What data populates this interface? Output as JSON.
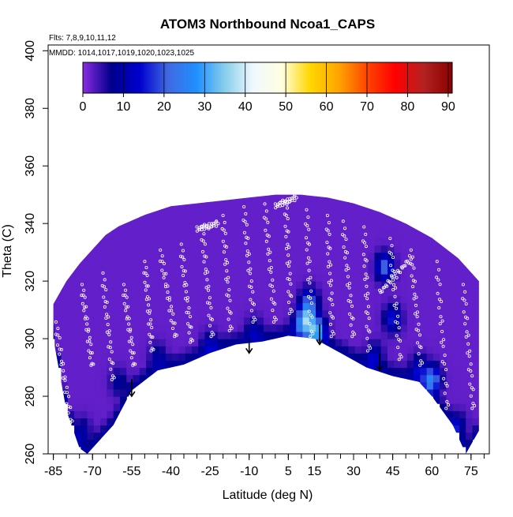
{
  "chart_data": {
    "type": "heatmap",
    "title": "ATOM3 Northbound Ncoa1_CAPS",
    "subtitle_lines": [
      "Flts: 7,8,9,10,11,12",
      "MMDD: 1014,1017,1019,1020,1023,1025"
    ],
    "xlabel": "Latitude (deg N)",
    "ylabel": "Theta (C)",
    "x_tick_labels": [
      "-85",
      "-70",
      "-55",
      "-40",
      "-25",
      "-10",
      "5",
      "15",
      "30",
      "45",
      "60",
      "75"
    ],
    "x_ticks": [
      -85,
      -70,
      -55,
      -40,
      -25,
      -10,
      5,
      15,
      30,
      45,
      60,
      75
    ],
    "xlim": [
      -87,
      82
    ],
    "y_tick_labels": [
      "260",
      "280",
      "300",
      "320",
      "340",
      "360",
      "380",
      "400"
    ],
    "y_ticks": [
      260,
      280,
      300,
      320,
      340,
      360,
      380,
      400
    ],
    "ylim": [
      260,
      402
    ],
    "colorbar": {
      "tick_labels": [
        "0",
        "10",
        "20",
        "30",
        "40",
        "50",
        "60",
        "70",
        "80",
        "90"
      ],
      "ticks": [
        0,
        10,
        20,
        30,
        40,
        50,
        60,
        70,
        80,
        90
      ],
      "range": [
        0,
        91
      ],
      "colors": [
        "#8a2be2",
        "#00008b",
        "#0000cd",
        "#4169e1",
        "#1e90ff",
        "#87ceeb",
        "#f0f8ff",
        "#ffffe0",
        "#ffd700",
        "#ffa500",
        "#ff4500",
        "#ff0000",
        "#b22222",
        "#8b0000"
      ]
    },
    "background_value": 2,
    "domain_top": [
      [
        -85,
        312
      ],
      [
        -80,
        320
      ],
      [
        -75,
        326
      ],
      [
        -70,
        331
      ],
      [
        -65,
        336
      ],
      [
        -60,
        339
      ],
      [
        -50,
        343
      ],
      [
        -40,
        346
      ],
      [
        -30,
        347
      ],
      [
        -20,
        348
      ],
      [
        -10,
        349
      ],
      [
        0,
        350
      ],
      [
        10,
        350
      ],
      [
        20,
        349
      ],
      [
        30,
        347
      ],
      [
        40,
        344
      ],
      [
        50,
        340
      ],
      [
        60,
        335
      ],
      [
        70,
        328
      ],
      [
        78,
        320
      ]
    ],
    "domain_bottom": [
      [
        -85,
        300
      ],
      [
        -80,
        275
      ],
      [
        -75,
        262
      ],
      [
        -72,
        260
      ],
      [
        -62,
        270
      ],
      [
        -55,
        282
      ],
      [
        -45,
        289
      ],
      [
        -35,
        291
      ],
      [
        -25,
        295
      ],
      [
        -15,
        298
      ],
      [
        -5,
        299
      ],
      [
        5,
        301
      ],
      [
        15,
        300
      ],
      [
        25,
        295
      ],
      [
        35,
        290
      ],
      [
        45,
        287
      ],
      [
        55,
        285
      ],
      [
        60,
        280
      ],
      [
        68,
        270
      ],
      [
        73,
        260
      ],
      [
        78,
        268
      ]
    ],
    "hotspots": [
      {
        "lat": 12,
        "theta": 307,
        "value": 22
      },
      {
        "lat": 16,
        "theta": 303,
        "value": 27
      },
      {
        "lat": 10,
        "theta": 305,
        "value": 14
      },
      {
        "lat": 13,
        "theta": 313,
        "value": 18
      },
      {
        "lat": 42,
        "theta": 325,
        "value": 20
      },
      {
        "lat": 45,
        "theta": 307,
        "value": 14
      },
      {
        "lat": 60,
        "theta": 286,
        "value": 24
      },
      {
        "lat": 55,
        "theta": 290,
        "value": 10
      },
      {
        "lat": 38,
        "theta": 294,
        "value": 11
      },
      {
        "lat": -8,
        "theta": 303,
        "value": 8
      },
      {
        "lat": -25,
        "theta": 298,
        "value": 8
      },
      {
        "lat": -45,
        "theta": 294,
        "value": 7
      },
      {
        "lat": -60,
        "theta": 285,
        "value": 7
      },
      {
        "lat": -74,
        "theta": 268,
        "value": 8
      },
      {
        "lat": 70,
        "theta": 270,
        "value": 9
      }
    ],
    "arrows": [
      {
        "lat": -55,
        "theta_top": 286,
        "theta_tip": 280
      },
      {
        "lat": -10,
        "theta_top": 300,
        "theta_tip": 295
      },
      {
        "lat": 17,
        "theta_top": 305,
        "theta_tip": 298
      },
      {
        "lat": 40,
        "theta_top": 295,
        "theta_tip": 289
      }
    ],
    "flight_tracks": [
      {
        "lat0": -84,
        "th0": 305,
        "lat1": -78,
        "th1": 270
      },
      {
        "lat0": -74,
        "th0": 318,
        "lat1": -70,
        "th1": 290
      },
      {
        "lat0": -66,
        "th0": 322,
        "lat1": -62,
        "th1": 285
      },
      {
        "lat0": -58,
        "th0": 318,
        "lat1": -54,
        "th1": 290
      },
      {
        "lat0": -50,
        "th0": 326,
        "lat1": -47,
        "th1": 295
      },
      {
        "lat0": -44,
        "th0": 330,
        "lat1": -38,
        "th1": 300
      },
      {
        "lat0": -36,
        "th0": 332,
        "lat1": -32,
        "th1": 298
      },
      {
        "lat0": -28,
        "th0": 338,
        "lat1": -24,
        "th1": 300
      },
      {
        "lat0": -20,
        "th0": 342,
        "lat1": -17,
        "th1": 302
      },
      {
        "lat0": -12,
        "th0": 345,
        "lat1": -8,
        "th1": 305
      },
      {
        "lat0": -4,
        "th0": 346,
        "lat1": 0,
        "th1": 305
      },
      {
        "lat0": 4,
        "th0": 347,
        "lat1": 6,
        "th1": 308
      },
      {
        "lat0": 12,
        "th0": 344,
        "lat1": 14,
        "th1": 300
      },
      {
        "lat0": 20,
        "th0": 342,
        "lat1": 22,
        "th1": 300
      },
      {
        "lat0": 26,
        "th0": 340,
        "lat1": 30,
        "th1": 300
      },
      {
        "lat0": 34,
        "th0": 338,
        "lat1": 36,
        "th1": 295
      },
      {
        "lat0": 44,
        "th0": 334,
        "lat1": 48,
        "th1": 292
      },
      {
        "lat0": 52,
        "th0": 330,
        "lat1": 56,
        "th1": 290
      },
      {
        "lat0": 62,
        "th0": 326,
        "lat1": 66,
        "th1": 275
      },
      {
        "lat0": 72,
        "th0": 318,
        "lat1": 76,
        "th1": 275
      },
      {
        "lat0": -30,
        "th0": 338,
        "lat1": -22,
        "th1": 340
      },
      {
        "lat0": 0,
        "th0": 346,
        "lat1": 8,
        "th1": 349
      },
      {
        "lat0": 40,
        "th0": 316,
        "lat1": 52,
        "th1": 328
      }
    ]
  }
}
